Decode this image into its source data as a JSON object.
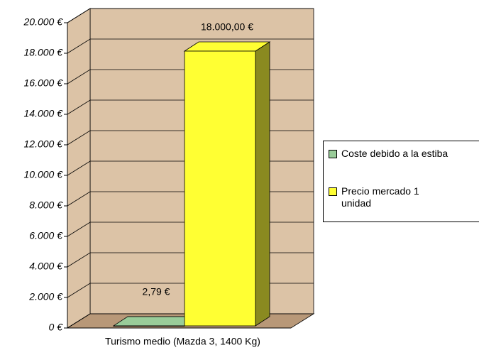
{
  "chart_data": {
    "type": "bar3d",
    "categories": [
      "Turismo medio (Mazda 3, 1400 Kg)"
    ],
    "series": [
      {
        "name": "Coste debido a la estiba",
        "color": "#99cc99",
        "values": [
          2.79
        ],
        "value_labels": [
          "2,79 €"
        ]
      },
      {
        "name": "Precio mercado 1 unidad",
        "color": "#ffff33",
        "values": [
          18000
        ],
        "value_labels": [
          "18.000,00 €"
        ]
      }
    ],
    "ylim": [
      0,
      20000
    ],
    "yticks": [
      {
        "value": 0,
        "label": "0 €"
      },
      {
        "value": 2000,
        "label": "2.000 €"
      },
      {
        "value": 4000,
        "label": "4.000 €"
      },
      {
        "value": 6000,
        "label": "6.000 €"
      },
      {
        "value": 8000,
        "label": "8.000 €"
      },
      {
        "value": 10000,
        "label": "10.000 €"
      },
      {
        "value": 12000,
        "label": "12.000 €"
      },
      {
        "value": 14000,
        "label": "14.000 €"
      },
      {
        "value": 16000,
        "label": "16.000 €"
      },
      {
        "value": 18000,
        "label": "18.000 €"
      },
      {
        "value": 20000,
        "label": "20.000 €"
      }
    ],
    "grid": true,
    "legend": "right"
  }
}
